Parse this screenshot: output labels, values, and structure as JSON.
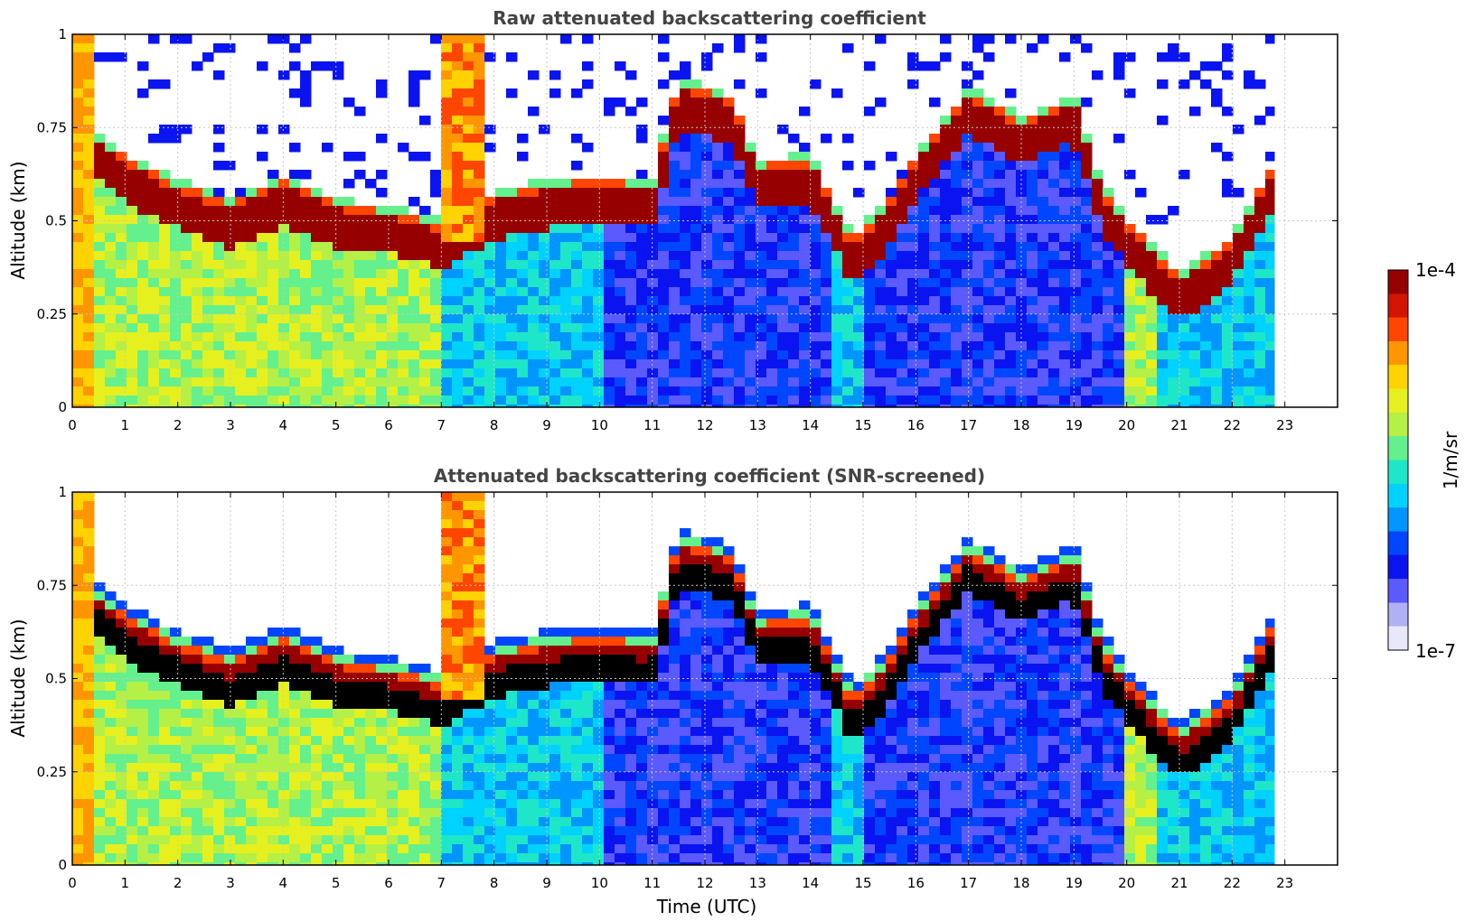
{
  "chart_data": [
    {
      "type": "heatmap",
      "title": "Raw attenuated backscattering coefficient",
      "xlabel": "",
      "ylabel": "Altitude (km)",
      "xlim": [
        0,
        24
      ],
      "ylim": [
        0,
        1
      ],
      "xticks": [
        "0",
        "1",
        "2",
        "3",
        "4",
        "5",
        "6",
        "7",
        "8",
        "9",
        "10",
        "11",
        "12",
        "13",
        "14",
        "15",
        "16",
        "17",
        "18",
        "19",
        "20",
        "21",
        "22",
        "23"
      ],
      "yticks": [
        "0",
        "0.25",
        "0.5",
        "0.75",
        "1"
      ],
      "data_end_time": 22.8,
      "layer_top_altitude_km": [
        [
          0.3,
          0.7
        ],
        [
          1,
          0.62
        ],
        [
          2,
          0.55
        ],
        [
          3,
          0.5
        ],
        [
          4,
          0.56
        ],
        [
          5,
          0.5
        ],
        [
          6,
          0.48
        ],
        [
          7,
          0.44
        ],
        [
          8,
          0.52
        ],
        [
          9,
          0.55
        ],
        [
          10,
          0.56
        ],
        [
          11,
          0.55
        ],
        [
          11.5,
          0.82
        ],
        [
          12.5,
          0.78
        ],
        [
          13,
          0.6
        ],
        [
          14,
          0.62
        ],
        [
          14.8,
          0.4
        ],
        [
          15.5,
          0.5
        ],
        [
          16,
          0.62
        ],
        [
          17,
          0.8
        ],
        [
          18,
          0.72
        ],
        [
          19,
          0.78
        ],
        [
          19.5,
          0.55
        ],
        [
          20,
          0.45
        ],
        [
          21,
          0.3
        ],
        [
          22,
          0.4
        ],
        [
          22.8,
          0.6
        ]
      ],
      "grid": true,
      "screened": false
    },
    {
      "type": "heatmap",
      "title": "Attenuated backscattering coefficient (SNR-screened)",
      "xlabel": "Time (UTC)",
      "ylabel": "Altitude (km)",
      "xlim": [
        0,
        24
      ],
      "ylim": [
        0,
        1
      ],
      "xticks": [
        "0",
        "1",
        "2",
        "3",
        "4",
        "5",
        "6",
        "7",
        "8",
        "9",
        "10",
        "11",
        "12",
        "13",
        "14",
        "15",
        "16",
        "17",
        "18",
        "19",
        "20",
        "21",
        "22",
        "23"
      ],
      "yticks": [
        "0",
        "0.25",
        "0.5",
        "0.75",
        "1"
      ],
      "data_end_time": 22.8,
      "layer_top_altitude_km": [
        [
          0.3,
          0.7
        ],
        [
          1,
          0.62
        ],
        [
          2,
          0.55
        ],
        [
          3,
          0.5
        ],
        [
          4,
          0.56
        ],
        [
          5,
          0.5
        ],
        [
          6,
          0.48
        ],
        [
          7,
          0.44
        ],
        [
          8,
          0.52
        ],
        [
          9,
          0.55
        ],
        [
          10,
          0.56
        ],
        [
          11,
          0.55
        ],
        [
          11.5,
          0.82
        ],
        [
          12.5,
          0.78
        ],
        [
          13,
          0.6
        ],
        [
          14,
          0.62
        ],
        [
          14.8,
          0.4
        ],
        [
          15.5,
          0.5
        ],
        [
          16,
          0.62
        ],
        [
          17,
          0.8
        ],
        [
          18,
          0.72
        ],
        [
          19,
          0.78
        ],
        [
          19.5,
          0.55
        ],
        [
          20,
          0.45
        ],
        [
          21,
          0.3
        ],
        [
          22,
          0.4
        ],
        [
          22.8,
          0.6
        ]
      ],
      "grid": true,
      "screened": true
    }
  ],
  "colorbar": {
    "label": "1/m/sr",
    "max_label": "1e-4",
    "min_label": "1e-7",
    "colors": [
      "#e8e8fa",
      "#b0b0f5",
      "#5a5aff",
      "#0a14f0",
      "#0046ff",
      "#0096ff",
      "#00d2ff",
      "#1ee6c8",
      "#64f08c",
      "#b4f046",
      "#e6f01e",
      "#ffd200",
      "#ff9600",
      "#ff4600",
      "#d21400",
      "#960000"
    ]
  },
  "colors": {
    "grid": "#c8c8c8",
    "axis": "#000000",
    "title": "#444444"
  }
}
